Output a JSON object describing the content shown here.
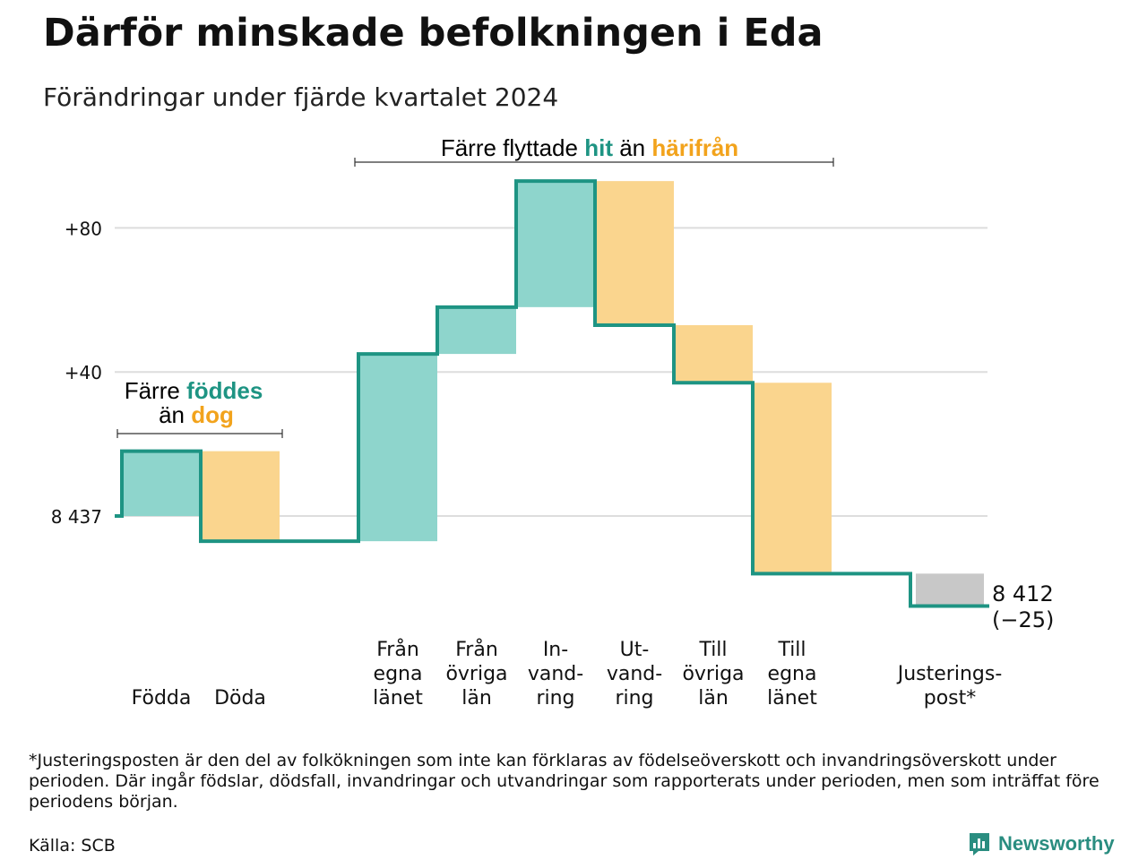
{
  "title": "Därför minskade befolkningen i Eda",
  "subtitle": "Förändringar under fjärde kvartalet 2024",
  "colors": {
    "increase": "#8ed5cc",
    "decrease": "#fad58e",
    "adjustment": "#c8c8c8",
    "line": "#1e9483",
    "teal_text": "#1e9483",
    "orange_text": "#f2a31c",
    "grid": "#dddddd"
  },
  "annotations": {
    "birth_death": {
      "line1_prefix": "Färre",
      "line1_highlight": "föddes",
      "line2_prefix": "än",
      "line2_highlight": "dog"
    },
    "migration": {
      "prefix": "Färre flyttade",
      "highlight1": "hit",
      "middle": "än",
      "highlight2": "härifrån"
    }
  },
  "chart_data": {
    "type": "waterfall",
    "start_value": 8437,
    "start_label": "8 437",
    "end_value": 8412,
    "end_label": "8 412",
    "end_change_label": "(−25)",
    "y_ticks": [
      {
        "value": 0,
        "label": "8 437"
      },
      {
        "value": 40,
        "label": "+40"
      },
      {
        "value": 80,
        "label": "+80"
      }
    ],
    "ylim": [
      -27,
      95
    ],
    "grid": true,
    "categories": [
      {
        "lines": [
          "Födda"
        ],
        "change": 18,
        "kind": "increase"
      },
      {
        "lines": [
          "Döda"
        ],
        "change": -25,
        "kind": "decrease"
      },
      {
        "lines": [
          ""
        ],
        "change": 0,
        "kind": "gap"
      },
      {
        "lines": [
          "Från",
          "egna",
          "länet"
        ],
        "change": 52,
        "kind": "increase"
      },
      {
        "lines": [
          "Från",
          "övriga",
          "län"
        ],
        "change": 13,
        "kind": "increase"
      },
      {
        "lines": [
          "In-",
          "vand-",
          "ring"
        ],
        "change": 35,
        "kind": "increase"
      },
      {
        "lines": [
          "Ut-",
          "vand-",
          "ring"
        ],
        "change": -40,
        "kind": "decrease"
      },
      {
        "lines": [
          "Till",
          "övriga",
          "län"
        ],
        "change": -16,
        "kind": "decrease"
      },
      {
        "lines": [
          "Till",
          "egna",
          "länet"
        ],
        "change": -53,
        "kind": "decrease"
      },
      {
        "lines": [
          ""
        ],
        "change": 0,
        "kind": "gap"
      },
      {
        "lines": [
          "Justerings-",
          "post*"
        ],
        "change": -9,
        "kind": "adjustment"
      }
    ]
  },
  "footnote": "*Justeringsposten är den del av folkökningen som inte kan förklaras av födelseöverskott och invandringsöverskott under perioden. Där ingår födslar, dödsfall, invandringar och utvandringar som rapporterats under perioden, men som inträffat före periodens början.",
  "source": "Källa: SCB",
  "logo": {
    "text": "Newsworthy",
    "icon": "newsworthy-logo-icon"
  }
}
